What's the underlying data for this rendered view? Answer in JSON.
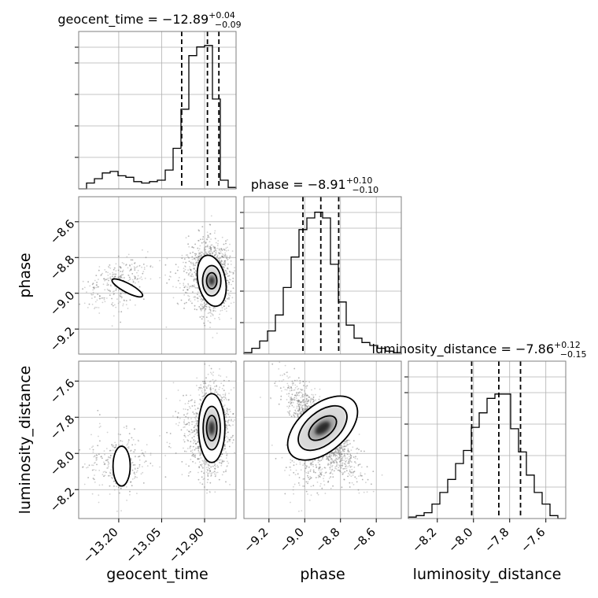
{
  "chart_data": {
    "type": "corner",
    "parameters": [
      "geocent_time",
      "phase",
      "luminosity_distance"
    ],
    "titles": [
      {
        "label": "geocent_time = −12.89",
        "sup": "+0.04",
        "sub": "−0.09"
      },
      {
        "label": "phase = −8.91",
        "sup": "+0.10",
        "sub": "−0.10"
      },
      {
        "label": "luminosity_distance = −7.86",
        "sup": "+0.12",
        "sub": "−0.15"
      }
    ],
    "ranges": {
      "geocent_time": [
        -13.34,
        -12.79
      ],
      "phase": [
        -9.34,
        -8.46
      ],
      "luminosity_distance": [
        -8.36,
        -7.49
      ]
    },
    "ticks": {
      "geocent_time": {
        "values": [
          -13.2,
          -13.05,
          -12.9
        ],
        "labels": [
          "−13.20",
          "−13.05",
          "−12.90"
        ]
      },
      "phase": {
        "values": [
          -9.2,
          -9.0,
          -8.8,
          -8.6
        ],
        "labels": [
          "−9.2",
          "−9.0",
          "−8.8",
          "−8.6"
        ]
      },
      "luminosity_distance": {
        "values": [
          -8.2,
          -8.0,
          -7.8,
          -7.6
        ],
        "labels": [
          "−8.2",
          "−8.0",
          "−7.8",
          "−7.6"
        ]
      }
    },
    "quantiles": {
      "geocent_time": [
        -12.98,
        -12.89,
        -12.85
      ],
      "phase": [
        -9.01,
        -8.91,
        -8.81
      ],
      "luminosity_distance": [
        -8.01,
        -7.86,
        -7.74
      ]
    },
    "histograms": {
      "geocent_time": [
        0.0,
        0.04,
        0.07,
        0.11,
        0.12,
        0.09,
        0.08,
        0.05,
        0.04,
        0.05,
        0.06,
        0.13,
        0.28,
        0.55,
        0.92,
        0.98,
        0.99,
        0.62,
        0.06,
        0.01
      ],
      "phase": [
        0.01,
        0.04,
        0.09,
        0.16,
        0.27,
        0.46,
        0.67,
        0.86,
        0.94,
        0.98,
        0.94,
        0.62,
        0.36,
        0.2,
        0.11,
        0.08,
        0.06,
        0.04,
        0.02,
        0.01
      ],
      "luminosity_distance": [
        0.01,
        0.02,
        0.04,
        0.1,
        0.18,
        0.27,
        0.38,
        0.47,
        0.63,
        0.73,
        0.83,
        0.86,
        0.86,
        0.62,
        0.46,
        0.3,
        0.18,
        0.1,
        0.02,
        0.0
      ]
    },
    "grid": true
  }
}
